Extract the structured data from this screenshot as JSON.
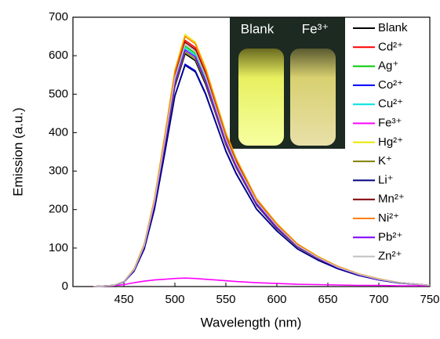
{
  "chart_data": {
    "type": "line",
    "x_label": "Wavelength (nm)",
    "y_label": "Emission (a.u.)",
    "xlim": [
      400,
      750
    ],
    "xticks": [
      450,
      500,
      550,
      600,
      650,
      700,
      750
    ],
    "ylim": [
      0,
      700
    ],
    "yticks": [
      0,
      100,
      200,
      300,
      400,
      500,
      600,
      700
    ],
    "legend": "right",
    "inset_labels": [
      "Blank",
      "Fe³⁺"
    ],
    "x": [
      420,
      440,
      450,
      460,
      470,
      480,
      490,
      500,
      510,
      520,
      530,
      540,
      550,
      560,
      580,
      600,
      620,
      640,
      660,
      680,
      700,
      720,
      750
    ],
    "series": [
      {
        "name": "Blank",
        "color": "#000000",
        "values": [
          0,
          3,
          12,
          42,
          103,
          212,
          363,
          520,
          605,
          587,
          526,
          448,
          369,
          309,
          212,
          151,
          103,
          73,
          48,
          30,
          18,
          10,
          3
        ]
      },
      {
        "name": "Cd²⁺",
        "color": "#ff0000",
        "values": [
          0,
          3,
          13,
          45,
          109,
          224,
          384,
          550,
          640,
          621,
          557,
          474,
          390,
          326,
          224,
          160,
          109,
          77,
          51,
          32,
          19,
          10,
          3
        ]
      },
      {
        "name": "Ag⁺",
        "color": "#00cc00",
        "values": [
          0,
          3,
          13,
          44,
          106,
          219,
          375,
          538,
          625,
          606,
          544,
          463,
          381,
          319,
          219,
          156,
          106,
          75,
          50,
          31,
          19,
          10,
          3
        ]
      },
      {
        "name": "Co²⁺",
        "color": "#0000ff",
        "values": [
          0,
          3,
          12,
          40,
          98,
          202,
          347,
          497,
          578,
          561,
          503,
          428,
          353,
          295,
          202,
          145,
          98,
          69,
          46,
          29,
          17,
          9,
          3
        ]
      },
      {
        "name": "Cu²⁺",
        "color": "#00e0e0",
        "values": [
          0,
          3,
          12,
          43,
          105,
          217,
          372,
          533,
          620,
          601,
          539,
          459,
          378,
          316,
          217,
          155,
          105,
          74,
          50,
          31,
          19,
          10,
          3
        ]
      },
      {
        "name": "Fe³⁺",
        "color": "#ff00ff",
        "values": [
          0,
          2,
          5,
          10,
          14,
          17,
          19,
          21,
          22,
          21,
          19,
          17,
          15,
          13,
          10,
          8,
          6,
          5,
          4,
          3,
          3,
          2,
          2
        ]
      },
      {
        "name": "Hg²⁺",
        "color": "#e8e800",
        "values": [
          0,
          3,
          13,
          46,
          111,
          229,
          393,
          563,
          655,
          635,
          570,
          485,
          400,
          334,
          229,
          164,
          111,
          79,
          52,
          33,
          20,
          10,
          3
        ]
      },
      {
        "name": "K⁺",
        "color": "#808000",
        "values": [
          0,
          3,
          12,
          43,
          104,
          214,
          366,
          525,
          610,
          592,
          531,
          451,
          372,
          311,
          214,
          153,
          104,
          73,
          49,
          31,
          18,
          10,
          3
        ]
      },
      {
        "name": "Li⁺",
        "color": "#000080",
        "values": [
          0,
          3,
          12,
          40,
          98,
          201,
          345,
          495,
          575,
          558,
          500,
          426,
          351,
          293,
          201,
          144,
          98,
          69,
          46,
          29,
          17,
          9,
          3
        ]
      },
      {
        "name": "Mn²⁺",
        "color": "#800000",
        "values": [
          0,
          3,
          13,
          44,
          108,
          222,
          381,
          546,
          635,
          616,
          552,
          470,
          387,
          324,
          222,
          159,
          108,
          76,
          51,
          32,
          19,
          10,
          3
        ]
      },
      {
        "name": "Ni²⁺",
        "color": "#ff8000",
        "values": [
          0,
          3,
          13,
          46,
          111,
          228,
          390,
          559,
          650,
          631,
          566,
          481,
          397,
          332,
          228,
          163,
          111,
          78,
          52,
          33,
          20,
          10,
          3
        ]
      },
      {
        "name": "Pb²⁺",
        "color": "#8000ff",
        "values": [
          0,
          3,
          12,
          43,
          105,
          215,
          369,
          529,
          615,
          597,
          535,
          455,
          375,
          314,
          215,
          154,
          105,
          74,
          49,
          31,
          18,
          10,
          3
        ]
      },
      {
        "name": "Zn²⁺",
        "color": "#c0c0c0",
        "values": [
          0,
          3,
          13,
          44,
          107,
          221,
          378,
          542,
          630,
          611,
          548,
          466,
          384,
          321,
          221,
          158,
          107,
          76,
          50,
          32,
          19,
          10,
          3
        ]
      }
    ]
  }
}
